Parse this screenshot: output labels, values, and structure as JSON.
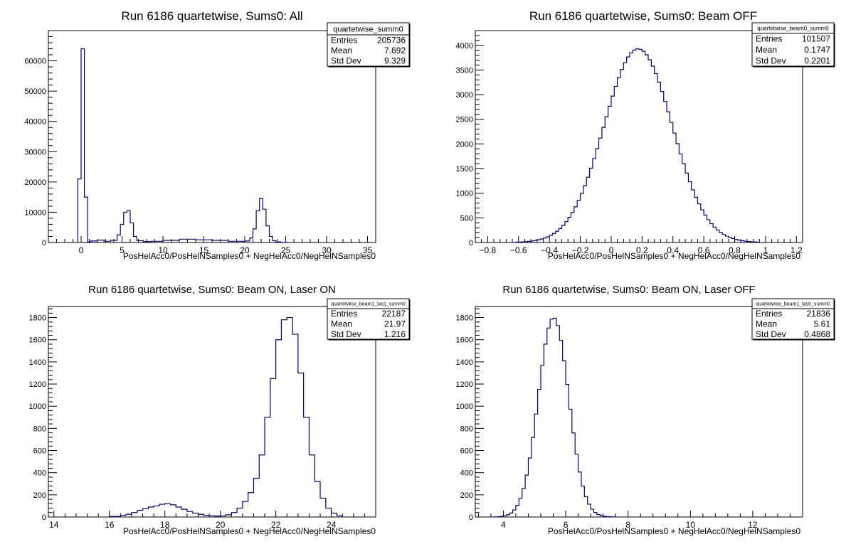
{
  "chart_data": [
    {
      "type": "histogram",
      "title": "Run 6186 quartetwise, Sums0: All",
      "xlabel": "PosHelAcc0/PosHelNSamples0 + NegHelAcc0/NegHelNSamples0",
      "ylabel": "",
      "xlim": [
        -4,
        36
      ],
      "ylim": [
        0,
        70000
      ],
      "xticks": [
        "0",
        "5",
        "10",
        "15",
        "20",
        "25",
        "30",
        "35"
      ],
      "yticks": [
        "0",
        "10000",
        "20000",
        "30000",
        "40000",
        "50000",
        "60000"
      ],
      "line_color": "#00007f",
      "stats": {
        "name": "quartetwise_summ0",
        "rows": [
          {
            "label": "Entries",
            "value": "205736"
          },
          {
            "label": "Mean",
            "value": "7.692"
          },
          {
            "label": "Std Dev",
            "value": "9.329"
          }
        ]
      },
      "bin_edges": [
        -0.4,
        0,
        0.4,
        0.8,
        1.2,
        2.0,
        2.8,
        3.6,
        4.4,
        4.8,
        5.2,
        5.6,
        6.0,
        6.4,
        6.8,
        7.6,
        8.6,
        10,
        12,
        14,
        16,
        18,
        20,
        20.6,
        21.0,
        21.4,
        21.8,
        22.2,
        22.6,
        23.0,
        23.4,
        23.8,
        24.4,
        25.2
      ],
      "counts": [
        21000,
        64000,
        15000,
        200,
        500,
        800,
        400,
        700,
        2500,
        6000,
        10000,
        10500,
        6500,
        2000,
        600,
        300,
        400,
        700,
        1100,
        900,
        700,
        400,
        500,
        1500,
        4500,
        10500,
        14500,
        11000,
        5500,
        2000,
        600,
        200,
        50
      ]
    },
    {
      "type": "histogram",
      "title": "Run 6186 quartetwise, Sums0: Beam OFF",
      "xlabel": "PosHelAcc0/PosHelNSamples0 + NegHelAcc0/NegHelNSamples0",
      "ylabel": "",
      "xlim": [
        -0.88,
        1.24
      ],
      "ylim": [
        0,
        4300
      ],
      "xticks": [
        "−0.8",
        "−0.6",
        "−0.4",
        "−0.2",
        "0",
        "0.2",
        "0.4",
        "0.6",
        "0.8",
        "1",
        "1.2"
      ],
      "yticks": [
        "0",
        "500",
        "1000",
        "1500",
        "2000",
        "2500",
        "3000",
        "3500",
        "4000"
      ],
      "line_color": "#00007f",
      "stats": {
        "name": "quartetwise_beam0_summ0",
        "rows": [
          {
            "label": "Entries",
            "value": "101507"
          },
          {
            "label": "Mean",
            "value": "0.1747"
          },
          {
            "label": "Std Dev",
            "value": "0.2201"
          }
        ]
      },
      "gauss": {
        "mean": 0.1747,
        "sigma": 0.2201,
        "peak": 3930,
        "range": [
          -0.62,
          0.96
        ],
        "nbins": 79
      }
    },
    {
      "type": "histogram",
      "title": "Run 6186 quartetwise, Sums0: Beam ON, Laser ON",
      "xlabel": "PosHelAcc0/PosHelNSamples0 + NegHelAcc0/NegHelNSamples0",
      "ylabel": "",
      "xlim": [
        13.8,
        25.6
      ],
      "ylim": [
        0,
        1900
      ],
      "xticks": [
        "14",
        "16",
        "18",
        "20",
        "22",
        "24"
      ],
      "yticks": [
        "0",
        "200",
        "400",
        "600",
        "800",
        "1000",
        "1200",
        "1400",
        "1600",
        "1800"
      ],
      "line_color": "#00007f",
      "stats": {
        "name": "quartetwise_beam1_las1_summ0",
        "rows": [
          {
            "label": "Entries",
            "value": "22187"
          },
          {
            "label": "Mean",
            "value": "21.97"
          },
          {
            "label": "Std Dev",
            "value": "1.216"
          }
        ]
      },
      "bin_edges": [
        16.0,
        16.4,
        16.6,
        16.8,
        17.0,
        17.2,
        17.4,
        17.6,
        17.8,
        18.0,
        18.2,
        18.4,
        18.6,
        18.8,
        19.0,
        19.2,
        19.4,
        19.6,
        19.8,
        20.0,
        20.2,
        20.4,
        20.6,
        20.8,
        21.0,
        21.2,
        21.4,
        21.6,
        21.8,
        22.0,
        22.2,
        22.4,
        22.6,
        22.8,
        23.0,
        23.2,
        23.4,
        23.6,
        23.8,
        24.0,
        24.2,
        24.4
      ],
      "counts": [
        5,
        15,
        25,
        40,
        60,
        75,
        90,
        100,
        115,
        120,
        110,
        90,
        70,
        50,
        35,
        25,
        15,
        10,
        8,
        10,
        20,
        40,
        80,
        140,
        220,
        350,
        560,
        900,
        1250,
        1600,
        1780,
        1800,
        1650,
        1300,
        900,
        560,
        320,
        170,
        80,
        35,
        10
      ]
    },
    {
      "type": "histogram",
      "title": "Run 6186 quartetwise, Sums0: Beam ON, Laser OFF",
      "xlabel": "PosHelAcc0/PosHelNSamples0 + NegHelAcc0/NegHelNSamples0",
      "ylabel": "",
      "xlim": [
        3.1,
        13.6
      ],
      "ylim": [
        0,
        1900
      ],
      "xticks": [
        "4",
        "6",
        "8",
        "10",
        "12"
      ],
      "yticks": [
        "0",
        "200",
        "400",
        "600",
        "800",
        "1000",
        "1200",
        "1400",
        "1600",
        "1800"
      ],
      "line_color": "#00007f",
      "stats": {
        "name": "quartetwise_beam1_las0_summ0",
        "rows": [
          {
            "label": "Entries",
            "value": "21836"
          },
          {
            "label": "Mean",
            "value": "5.61"
          },
          {
            "label": "Std Dev",
            "value": "0.4868"
          }
        ]
      },
      "gauss": {
        "mean": 5.61,
        "sigma": 0.4868,
        "peak": 1800,
        "range": [
          3.6,
          7.6
        ],
        "nbins": 40
      }
    }
  ]
}
